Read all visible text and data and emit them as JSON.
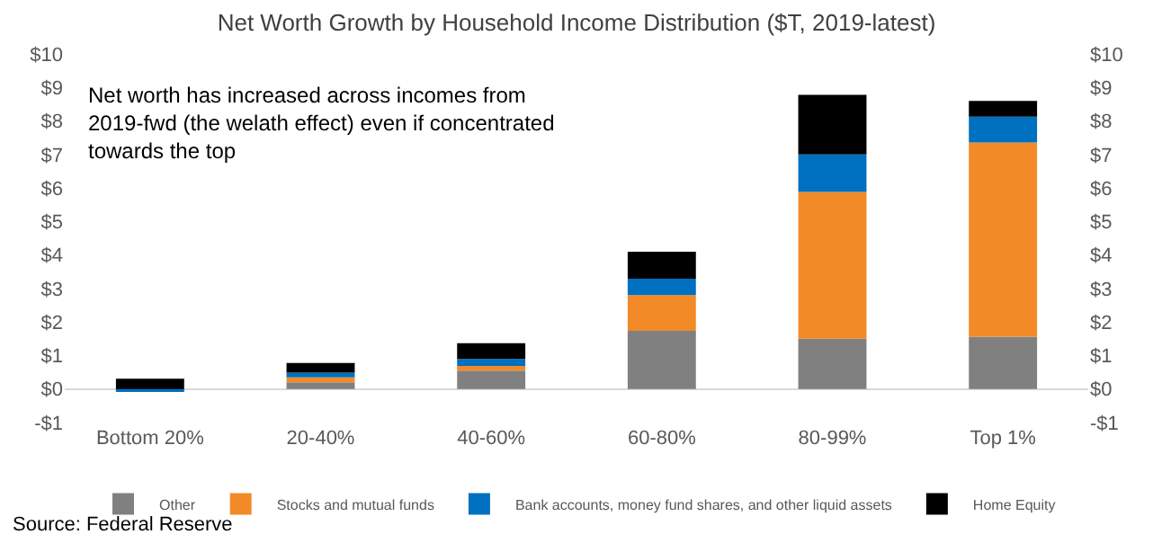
{
  "chart_data": {
    "type": "bar",
    "title": "Net Worth Growth by Household Income Distribution ($T, 2019-latest)",
    "categories": [
      "Bottom 20%",
      "20-40%",
      "40-60%",
      "60-80%",
      "80-99%",
      "Top 1%"
    ],
    "stacked": true,
    "series": [
      {
        "name": "Other",
        "color": "#808080",
        "values": [
          null,
          0.2,
          0.55,
          1.74,
          1.5,
          1.56
        ]
      },
      {
        "name": "Stocks and mutual funds",
        "color": "#f28a28",
        "values": [
          null,
          0.15,
          0.14,
          1.06,
          4.38,
          5.8
        ]
      },
      {
        "name": "Bank accounts, money fund shares, and other liquid assets",
        "color": "#0070c0",
        "values": [
          -0.08,
          0.14,
          0.21,
          0.49,
          1.12,
          0.77
        ]
      },
      {
        "name": "Home Equity",
        "color": "#000000",
        "values": [
          0.31,
          0.29,
          0.47,
          0.81,
          1.78,
          0.47
        ]
      }
    ],
    "ylim": [
      -1,
      10
    ],
    "yticks": [
      {
        "value": -1,
        "label": "-$1"
      },
      {
        "value": 0,
        "label": "$0"
      },
      {
        "value": 1,
        "label": "$1"
      },
      {
        "value": 2,
        "label": "$2"
      },
      {
        "value": 3,
        "label": "$3"
      },
      {
        "value": 4,
        "label": "$4"
      },
      {
        "value": 5,
        "label": "$5"
      },
      {
        "value": 6,
        "label": "$6"
      },
      {
        "value": 7,
        "label": "$7"
      },
      {
        "value": 8,
        "label": "$8"
      },
      {
        "value": 9,
        "label": "$9"
      },
      {
        "value": 10,
        "label": "$10"
      }
    ],
    "y2lim": [
      -1,
      10
    ],
    "y2ticks": [
      {
        "value": -1,
        "label": "-$1"
      },
      {
        "value": 0,
        "label": "$0"
      },
      {
        "value": 1,
        "label": "$1"
      },
      {
        "value": 2,
        "label": "$2"
      },
      {
        "value": 3,
        "label": "$3"
      },
      {
        "value": 4,
        "label": "$4"
      },
      {
        "value": 5,
        "label": "$5"
      },
      {
        "value": 6,
        "label": "$6"
      },
      {
        "value": 7,
        "label": "$7"
      },
      {
        "value": 8,
        "label": "$8"
      },
      {
        "value": 9,
        "label": "$9"
      },
      {
        "value": 10,
        "label": "$10"
      }
    ],
    "annotations": [
      "Net worth has increased across incomes from 2019-fwd (the welath effect) even if concentrated towards the top",
      "Source: Federal Reserve"
    ],
    "legend": "bottom"
  }
}
